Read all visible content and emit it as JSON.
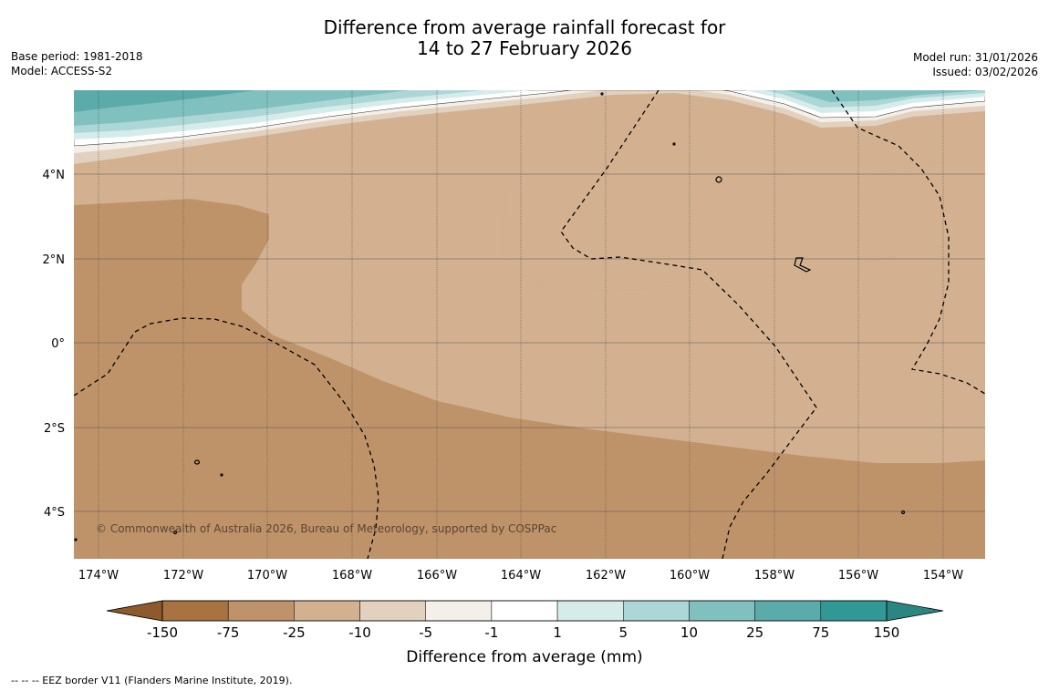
{
  "title": {
    "line1": "Difference from average rainfall forecast for",
    "line2": "14 to 27 February 2026"
  },
  "meta": {
    "base_period": "Base period: 1981-2018",
    "model": "Model: ACCESS-S2",
    "model_run": "Model run: 31/01/2026",
    "issued": "Issued: 03/02/2026"
  },
  "map": {
    "x_ticks": [
      "174°W",
      "172°W",
      "170°W",
      "168°W",
      "166°W",
      "164°W",
      "162°W",
      "160°W",
      "158°W",
      "156°W",
      "154°W"
    ],
    "y_ticks": [
      "4°N",
      "2°N",
      "0°",
      "2°S",
      "4°S"
    ],
    "copyright": "© Commonwealth of Australia 2026, Bureau of Meteorology, supported by COSPPac"
  },
  "legend": {
    "title": "Difference from average (mm)",
    "labels": [
      "-150",
      "-75",
      "-25",
      "-10",
      "-5",
      "-1",
      "1",
      "5",
      "10",
      "25",
      "75",
      "150"
    ],
    "colors": [
      "#a97341",
      "#bf9369",
      "#d3b190",
      "#e3d1bf",
      "#f4f0e9",
      "#ffffff",
      "#d6ecea",
      "#acd7d6",
      "#80c1bf",
      "#5aabaa",
      "#319995"
    ],
    "extend_low_color": "#8c5a2c",
    "extend_high_color": "#2b8682"
  },
  "footnote": "--  --  -- EEZ border V11 (Flanders Marine Institute, 2019)."
}
